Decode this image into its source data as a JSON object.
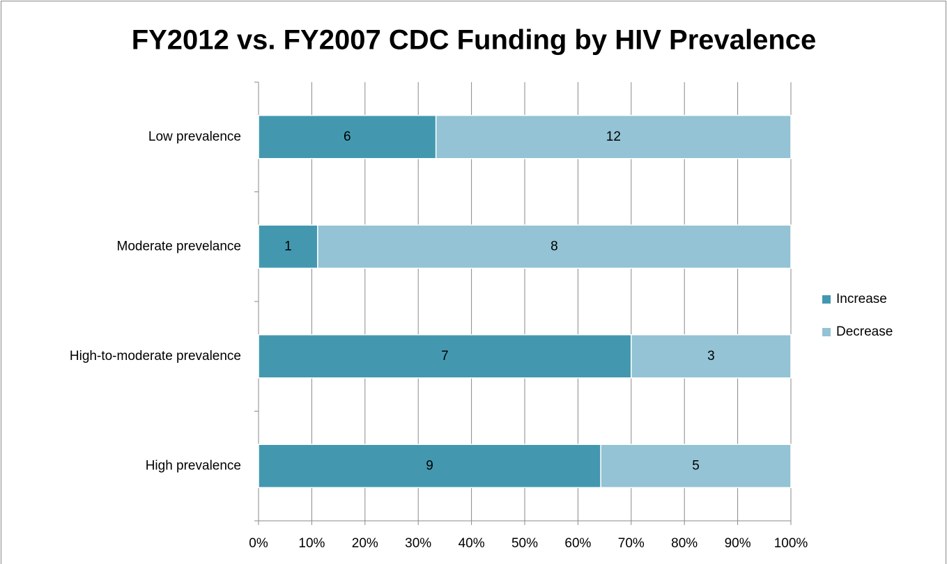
{
  "chart_data": {
    "type": "bar",
    "orientation": "horizontal",
    "stacking": "percent",
    "title": "FY2012 vs. FY2007 CDC Funding by HIV Prevalence",
    "categories": [
      "Low prevalence",
      "Moderate prevelance",
      "High-to-moderate prevalence",
      "High prevalence"
    ],
    "series": [
      {
        "name": "Increase",
        "color": "#4398b0",
        "values": [
          6,
          1,
          7,
          9
        ]
      },
      {
        "name": "Decrease",
        "color": "#93c3d4",
        "values": [
          12,
          8,
          3,
          5
        ]
      }
    ],
    "xlim": [
      0,
      100
    ],
    "xticks": [
      {
        "value": 0,
        "label": "0%"
      },
      {
        "value": 10,
        "label": "10%"
      },
      {
        "value": 20,
        "label": "20%"
      },
      {
        "value": 30,
        "label": "30%"
      },
      {
        "value": 40,
        "label": "40%"
      },
      {
        "value": 50,
        "label": "50%"
      },
      {
        "value": 60,
        "label": "60%"
      },
      {
        "value": 70,
        "label": "70%"
      },
      {
        "value": 80,
        "label": "80%"
      },
      {
        "value": 90,
        "label": "90%"
      },
      {
        "value": 100,
        "label": "100%"
      }
    ],
    "grid": true,
    "legend": "right"
  }
}
